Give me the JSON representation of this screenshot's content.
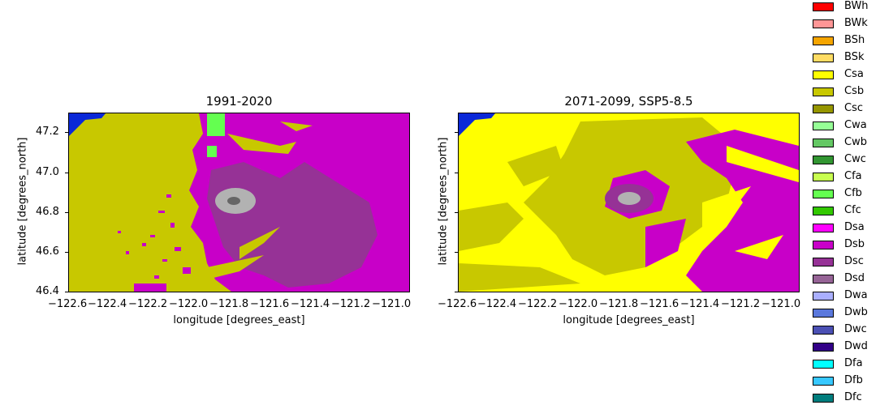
{
  "maps": [
    {
      "title": "1991-2020",
      "xlabel": "longitude [degrees_east]",
      "ylabel": "latitude [degrees_north]",
      "x_ticks": [
        "−122.6",
        "−122.4",
        "−122.2",
        "−122.0",
        "−121.8",
        "−121.6",
        "−121.4",
        "−121.2",
        "−121.0"
      ],
      "y_ticks": [
        "47.2",
        "47.0",
        "46.8",
        "46.6",
        "46.4"
      ],
      "x_range": [
        -122.6,
        -120.92
      ],
      "y_range": [
        46.4,
        47.3
      ],
      "dominant_classes": [
        "Csb",
        "Dsb",
        "Dsc",
        "Cfb"
      ]
    },
    {
      "title": "2071-2099, SSP5-8.5",
      "xlabel": "longitude [degrees_east]",
      "ylabel": "latitude [degrees_north]",
      "x_ticks": [
        "−122.6",
        "−122.4",
        "−122.2",
        "−122.0",
        "−121.8",
        "−121.6",
        "−121.4",
        "−121.2",
        "−121.0"
      ],
      "y_ticks": [
        "",
        "",
        "",
        "",
        ""
      ],
      "x_range": [
        -122.6,
        -120.92
      ],
      "y_range": [
        46.4,
        47.3
      ],
      "dominant_classes": [
        "Csa",
        "Csb",
        "Dsb",
        "Dsc"
      ]
    }
  ],
  "legend": [
    {
      "label": "BWh",
      "color": "#ff0000"
    },
    {
      "label": "BWk",
      "color": "#ff9696"
    },
    {
      "label": "BSh",
      "color": "#f5a500"
    },
    {
      "label": "BSk",
      "color": "#ffdc64"
    },
    {
      "label": "Csa",
      "color": "#ffff00"
    },
    {
      "label": "Csb",
      "color": "#c8c800"
    },
    {
      "label": "Csc",
      "color": "#969600"
    },
    {
      "label": "Cwa",
      "color": "#96ff96"
    },
    {
      "label": "Cwb",
      "color": "#64c864"
    },
    {
      "label": "Cwc",
      "color": "#329632"
    },
    {
      "label": "Cfa",
      "color": "#c8ff50"
    },
    {
      "label": "Cfb",
      "color": "#64ff50"
    },
    {
      "label": "Cfc",
      "color": "#32c800"
    },
    {
      "label": "Dsa",
      "color": "#ff00ff"
    },
    {
      "label": "Dsb",
      "color": "#c800c8"
    },
    {
      "label": "Dsc",
      "color": "#963296"
    },
    {
      "label": "Dsd",
      "color": "#966496"
    },
    {
      "label": "Dwa",
      "color": "#aaafff"
    },
    {
      "label": "Dwb",
      "color": "#5a78dc"
    },
    {
      "label": "Dwc",
      "color": "#4b50b4"
    },
    {
      "label": "Dwd",
      "color": "#320087"
    },
    {
      "label": "Dfa",
      "color": "#00ffff"
    },
    {
      "label": "Dfb",
      "color": "#37c8ff"
    },
    {
      "label": "Dfc",
      "color": "#007d7d"
    }
  ],
  "colors": {
    "water": "#0a28d8",
    "ice": "#b2b2b2",
    "ice_dark": "#666666"
  }
}
